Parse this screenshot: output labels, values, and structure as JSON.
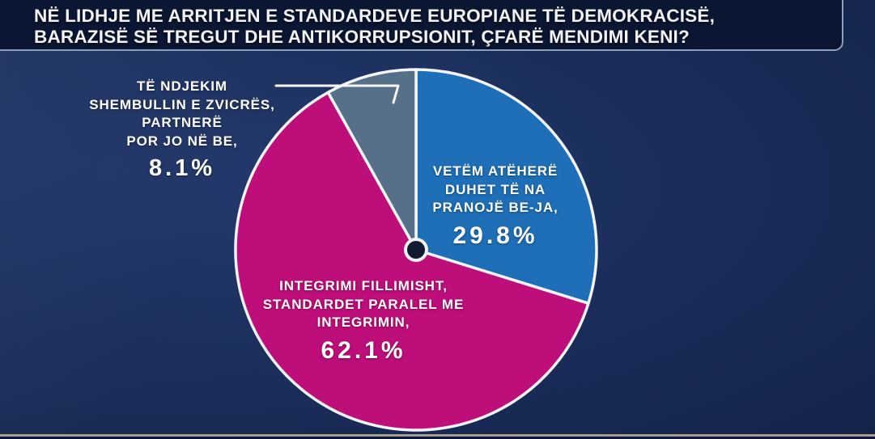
{
  "banner": {
    "lines": [
      "NË LIDHJE ME ARRITJEN E STANDARDEVE EUROPIANE TË DEMOKRACISË,",
      "BARAZISË SË TREGUT DHE ANTIKORRUPSIONIT, ÇFARË MENDIMI KENI?"
    ]
  },
  "colors": {
    "banner_background": "#0b1632",
    "banner_border": "#8aa0bc",
    "page_background": "#1b2e5b",
    "slice_blue": "#1e6fb7",
    "slice_magenta": "#bd0e7a",
    "slice_gray": "#57708a",
    "slice_stroke": "#f3f5f9",
    "center_dot": "#121a32",
    "bottom_rule": "#a59e8e",
    "label_text": "#ffffff"
  },
  "chart_data": {
    "type": "pie",
    "title": "NË LIDHJE ME ARRITJEN E STANDARDEVE EUROPIANE TË DEMOKRACISË, BARAZISË SË TREGUT DHE ANTIKORRUPSIONIT, ÇFARË MENDIMI KENI?",
    "start_angle_deg": 0,
    "direction": "clockwise",
    "legend_position": "none",
    "slices": [
      {
        "label": "VETËM ATËHERË DUHET TË NA PRANOJË BE-JA,",
        "label_lines": [
          "VETËM ATËHERË",
          "DUHET TË NA",
          "PRANOJË BE-JA,"
        ],
        "value": 29.8,
        "display": "29.8%",
        "color": "#1e6fb7",
        "label_placement": "inside"
      },
      {
        "label": "INTEGRIMI FILLIMISHT, STANDARDET PARALEL ME INTEGRIMIN,",
        "label_lines": [
          "INTEGRIMI FILLIMISHT,",
          "STANDARDET PARALEL ME",
          "INTEGRIMIN,"
        ],
        "value": 62.1,
        "display": "62.1%",
        "color": "#bd0e7a",
        "label_placement": "inside"
      },
      {
        "label": "TË NDJEKIM SHEMBULLIN E ZVICRËS, PARTNERË POR JO NË BE,",
        "label_lines": [
          "TË NDJEKIM",
          "SHEMBULLIN E ZVICRËS,",
          "PARTNERË",
          "POR JO NË BE,"
        ],
        "value": 8.1,
        "display": "8.1%",
        "color": "#57708a",
        "label_placement": "outside-left"
      }
    ]
  }
}
